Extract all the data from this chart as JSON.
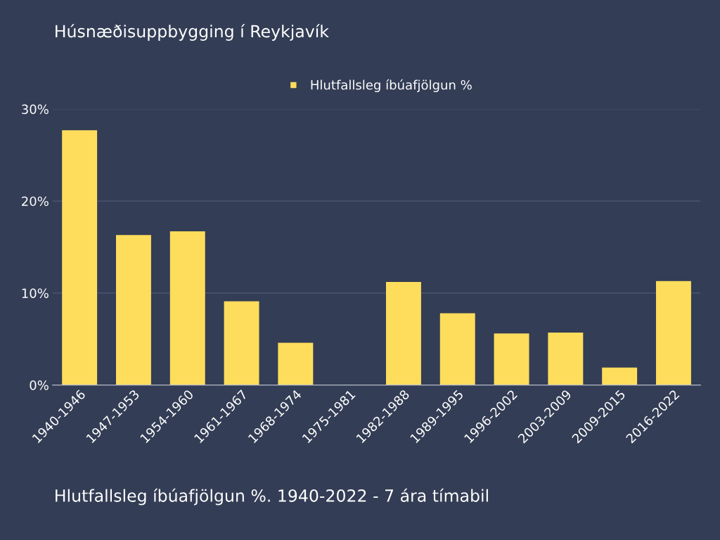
{
  "chart_data": {
    "type": "bar",
    "title": "Húsnæðisuppbygging í Reykjavík",
    "categories": [
      "1940-1946",
      "1947-1953",
      "1954-1960",
      "1961-1967",
      "1968-1974",
      "1975-1981",
      "1982-1988",
      "1989-1995",
      "1996-2002",
      "2003-2009",
      "2009-2015",
      "2016-2022"
    ],
    "series": [
      {
        "name": "Hlutfallsleg íbúafjölgun %",
        "color": "#fedd5c",
        "values": [
          27.7,
          16.3,
          16.7,
          9.1,
          4.6,
          null,
          11.2,
          7.8,
          5.6,
          5.7,
          1.9,
          11.3
        ]
      }
    ],
    "ylim": [
      0,
      30
    ],
    "yticks": [
      {
        "value": 0,
        "label": "0%"
      },
      {
        "value": 10,
        "label": "10%"
      },
      {
        "value": 20,
        "label": "20%"
      },
      {
        "value": 30,
        "label": "30%"
      }
    ],
    "grid": "y",
    "legend": "top",
    "annotations": [
      "Hlutfallsleg íbúafjölgun %. 1940-2022 - 7 ára tímabil"
    ]
  }
}
